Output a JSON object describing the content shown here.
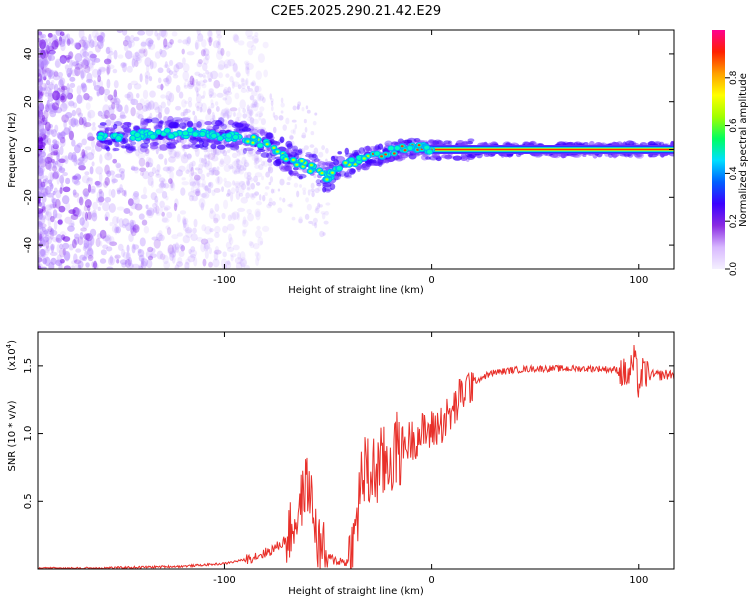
{
  "figure": {
    "title": "C2E5.2025.290.21.42.E29"
  },
  "chart_data": [
    {
      "type": "heatmap",
      "name": "spectrogram",
      "title": "C2E5.2025.290.21.42.E29",
      "xlabel": "Height of straight line (km)",
      "ylabel": "Frequency (Hz)",
      "xlim": [
        -190,
        117
      ],
      "ylim": [
        -50,
        50
      ],
      "xticks": [
        -100,
        0,
        100
      ],
      "xtick_labels": [
        "-100",
        "0",
        "100"
      ],
      "yticks": [
        -40,
        -20,
        0,
        20,
        40
      ],
      "ytick_labels": [
        "-40",
        "-20",
        "0",
        "20",
        "40"
      ],
      "grid": false,
      "trace": {
        "description_points_x": [
          -155,
          -140,
          -120,
          -100,
          -90,
          -80,
          -70,
          -60,
          -50,
          -45,
          -40,
          -30,
          -20,
          -10,
          0,
          10,
          20,
          117
        ],
        "description_points_y": [
          5,
          6,
          7,
          6,
          5,
          2,
          -3,
          -7,
          -12,
          -7,
          -6,
          -3,
          -1,
          1,
          0,
          0,
          0,
          0
        ]
      },
      "colorbar": {
        "label": "Normalized spectral amplitude",
        "range": [
          0,
          1
        ],
        "ticks": [
          0.0,
          0.2,
          0.4,
          0.6,
          0.8
        ],
        "tick_labels": [
          "0.0",
          "0.2",
          "0.4",
          "0.6",
          "0.8"
        ],
        "colors": [
          "#f4f0ff",
          "#d8b8ff",
          "#8a2be2",
          "#3b00ff",
          "#0060ff",
          "#00e0ff",
          "#00ff60",
          "#a0ff00",
          "#ffff00",
          "#ffa000",
          "#ff2000",
          "#ff0090"
        ]
      }
    },
    {
      "type": "line",
      "name": "snr",
      "xlabel": "Height of straight line (km)",
      "ylabel": "SNR (10 * v/v)",
      "y_scale_label": "(x10",
      "y_scale_exponent": "4",
      "y_scale_suffix": ")",
      "xlim": [
        -190,
        117
      ],
      "ylim": [
        0,
        1.75
      ],
      "xticks": [
        -100,
        0,
        100
      ],
      "xtick_labels": [
        "-100",
        "0",
        "100"
      ],
      "yticks": [
        0.5,
        1.0,
        1.5
      ],
      "ytick_labels": [
        "0.5",
        "1.0",
        "1.5"
      ],
      "grid": false,
      "series": [
        {
          "name": "SNR",
          "color": "#e8302a",
          "x": [
            -190,
            -150,
            -120,
            -100,
            -90,
            -80,
            -75,
            -70,
            -65,
            -62,
            -60,
            -58,
            -55,
            -50,
            -45,
            -40,
            -37,
            -35,
            -33,
            -30,
            -28,
            -25,
            -22,
            -20,
            -15,
            -10,
            -5,
            0,
            5,
            10,
            15,
            20,
            25,
            30,
            40,
            50,
            60,
            70,
            80,
            90,
            95,
            98,
            100,
            102,
            105,
            110,
            117
          ],
          "y": [
            0.0,
            0.01,
            0.02,
            0.04,
            0.07,
            0.12,
            0.16,
            0.22,
            0.38,
            0.55,
            0.65,
            0.5,
            0.2,
            0.08,
            0.06,
            0.05,
            0.22,
            0.55,
            0.72,
            0.68,
            0.72,
            0.75,
            0.78,
            0.82,
            0.9,
            0.95,
            1.0,
            1.02,
            1.08,
            1.15,
            1.3,
            1.38,
            1.42,
            1.45,
            1.47,
            1.48,
            1.48,
            1.48,
            1.48,
            1.47,
            1.42,
            1.55,
            1.35,
            1.45,
            1.43,
            1.43,
            1.44
          ]
        }
      ]
    }
  ]
}
